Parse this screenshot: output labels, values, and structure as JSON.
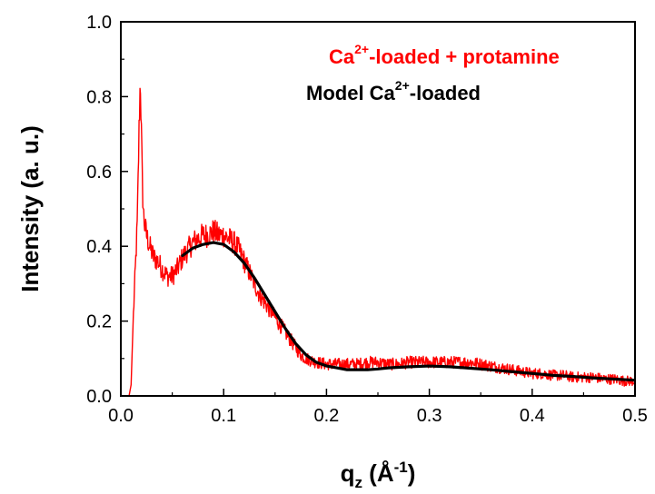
{
  "chart_data": {
    "type": "line",
    "xlabel": {
      "base": "q",
      "sub": "z",
      "unit_open": " (Å",
      "unit_sup": "-1",
      "unit_close": ")"
    },
    "ylabel": "Intensity (a. u.)",
    "xlim": [
      0.0,
      0.5
    ],
    "ylim": [
      0.0,
      1.0
    ],
    "xticks": [
      "0.0",
      "0.1",
      "0.2",
      "0.3",
      "0.4",
      "0.5"
    ],
    "yticks": [
      "0.0",
      "0.2",
      "0.4",
      "0.6",
      "0.8",
      "1.0"
    ],
    "grid": false,
    "legend_position": "top-right",
    "series": [
      {
        "name": {
          "pre": "Ca",
          "sup": "2+",
          "post": "-loaded + protamine"
        },
        "color": "#ff0000",
        "style": "noisy-data",
        "x": [
          0.0,
          0.008,
          0.01,
          0.012,
          0.014,
          0.016,
          0.017,
          0.018,
          0.019,
          0.02,
          0.021,
          0.022,
          0.023,
          0.025,
          0.028,
          0.032,
          0.036,
          0.04,
          0.045,
          0.05,
          0.055,
          0.06,
          0.065,
          0.07,
          0.075,
          0.08,
          0.085,
          0.09,
          0.095,
          0.1,
          0.105,
          0.11,
          0.115,
          0.12,
          0.125,
          0.13,
          0.135,
          0.14,
          0.145,
          0.15,
          0.155,
          0.16,
          0.165,
          0.17,
          0.175,
          0.18,
          0.19,
          0.2,
          0.21,
          0.22,
          0.23,
          0.24,
          0.25,
          0.26,
          0.27,
          0.28,
          0.29,
          0.3,
          0.31,
          0.32,
          0.33,
          0.34,
          0.35,
          0.36,
          0.37,
          0.38,
          0.39,
          0.4,
          0.41,
          0.42,
          0.43,
          0.44,
          0.45,
          0.46,
          0.47,
          0.48,
          0.49,
          0.5
        ],
        "y": [
          0.0,
          0.0,
          0.03,
          0.2,
          0.33,
          0.46,
          0.6,
          0.75,
          0.85,
          0.7,
          0.56,
          0.49,
          0.46,
          0.43,
          0.4,
          0.37,
          0.36,
          0.34,
          0.32,
          0.32,
          0.34,
          0.37,
          0.39,
          0.41,
          0.42,
          0.43,
          0.43,
          0.44,
          0.43,
          0.43,
          0.42,
          0.41,
          0.39,
          0.36,
          0.33,
          0.3,
          0.27,
          0.25,
          0.23,
          0.21,
          0.19,
          0.17,
          0.15,
          0.13,
          0.11,
          0.1,
          0.09,
          0.085,
          0.085,
          0.085,
          0.085,
          0.09,
          0.09,
          0.085,
          0.085,
          0.09,
          0.09,
          0.09,
          0.09,
          0.09,
          0.09,
          0.09,
          0.085,
          0.08,
          0.075,
          0.07,
          0.065,
          0.06,
          0.06,
          0.055,
          0.055,
          0.05,
          0.05,
          0.05,
          0.045,
          0.045,
          0.04,
          0.04
        ]
      },
      {
        "name": {
          "pre": "Model Ca",
          "sup": "2+",
          "post": "-loaded"
        },
        "color": "#000000",
        "style": "smooth",
        "x": [
          0.06,
          0.07,
          0.08,
          0.09,
          0.1,
          0.11,
          0.12,
          0.13,
          0.14,
          0.15,
          0.16,
          0.17,
          0.18,
          0.19,
          0.2,
          0.21,
          0.22,
          0.23,
          0.24,
          0.25,
          0.26,
          0.28,
          0.3,
          0.32,
          0.34,
          0.36,
          0.38,
          0.4,
          0.42,
          0.44,
          0.46,
          0.48,
          0.5
        ],
        "y": [
          0.375,
          0.395,
          0.405,
          0.41,
          0.405,
          0.385,
          0.355,
          0.315,
          0.27,
          0.225,
          0.18,
          0.14,
          0.11,
          0.09,
          0.08,
          0.075,
          0.07,
          0.07,
          0.07,
          0.072,
          0.075,
          0.078,
          0.08,
          0.078,
          0.074,
          0.07,
          0.065,
          0.06,
          0.055,
          0.052,
          0.048,
          0.045,
          0.042
        ]
      }
    ]
  }
}
